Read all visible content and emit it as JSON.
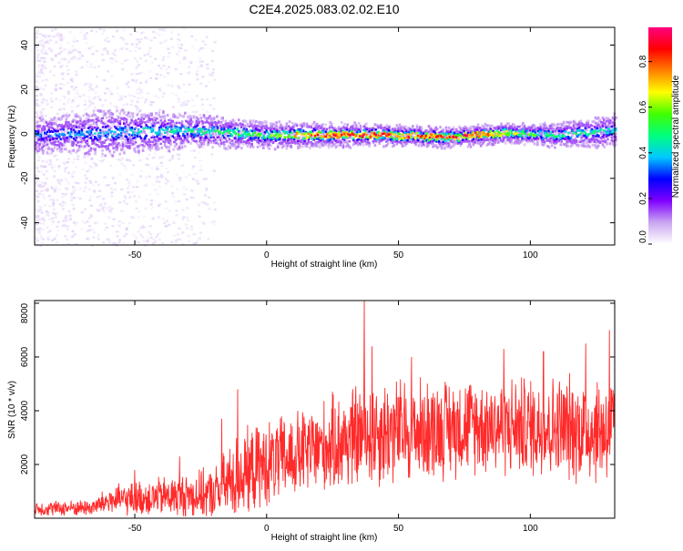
{
  "page_title": "C2E4.2025.083.02.02.E10",
  "chart_data": [
    {
      "type": "heatmap",
      "panel": "spectrogram",
      "xlabel": "Height of straight line (km)",
      "ylabel": "Frequency (Hz)",
      "xlim": [
        -88,
        132
      ],
      "ylim": [
        -50,
        48
      ],
      "xticks": [
        -50,
        0,
        50,
        100
      ],
      "yticks": [
        -40,
        -20,
        0,
        20,
        40
      ],
      "colorbar": {
        "label": "Normalized spectral amplitude",
        "range": [
          0,
          0.95
        ],
        "ticks": [
          0.0,
          0.2,
          0.4,
          0.6,
          0.8
        ],
        "tick_labels": [
          "0.0",
          "0.2",
          "0.4",
          "0.6",
          "0.8"
        ],
        "colors": [
          "#ffffff",
          "#c9a6f0",
          "#8000ff",
          "#0000ff",
          "#00c8ff",
          "#00ff80",
          "#40ff00",
          "#ffff00",
          "#ff8000",
          "#ff0000",
          "#ff0080"
        ]
      },
      "ridge": {
        "center_hz": [
          {
            "x": -88,
            "y": 0
          },
          {
            "x": -60,
            "y": 1
          },
          {
            "x": -30,
            "y": 2
          },
          {
            "x": 0,
            "y": 0
          },
          {
            "x": 40,
            "y": 0
          },
          {
            "x": 70,
            "y": -1
          },
          {
            "x": 90,
            "y": 1
          },
          {
            "x": 110,
            "y": 0
          },
          {
            "x": 132,
            "y": 2
          }
        ],
        "halfwidth_hz": [
          {
            "x": -88,
            "y": 5
          },
          {
            "x": -60,
            "y": 7
          },
          {
            "x": -30,
            "y": 5
          },
          {
            "x": 0,
            "y": 4
          },
          {
            "x": 60,
            "y": 3
          },
          {
            "x": 100,
            "y": 3
          },
          {
            "x": 132,
            "y": 5
          }
        ],
        "peak_amplitude": [
          {
            "x": -88,
            "y": 0.35
          },
          {
            "x": -60,
            "y": 0.42
          },
          {
            "x": -30,
            "y": 0.5
          },
          {
            "x": 0,
            "y": 0.6
          },
          {
            "x": 20,
            "y": 0.85
          },
          {
            "x": 40,
            "y": 0.9
          },
          {
            "x": 60,
            "y": 0.9
          },
          {
            "x": 80,
            "y": 0.88
          },
          {
            "x": 100,
            "y": 0.6
          },
          {
            "x": 132,
            "y": 0.45
          }
        ]
      },
      "scatter_region": {
        "x_range": [
          -88,
          -20
        ],
        "note": "sparse low-amplitude returns across all frequencies"
      }
    },
    {
      "type": "line",
      "panel": "snr",
      "xlabel": "Height of straight line (km)",
      "ylabel": "SNR (10 * v/v)",
      "xlim": [
        -88,
        132
      ],
      "ylim": [
        0,
        8100
      ],
      "xticks": [
        -50,
        0,
        50,
        100
      ],
      "yticks": [
        2000,
        4000,
        6000,
        8000
      ],
      "color": "#ff2a2a",
      "envelope": [
        {
          "x": -88,
          "mean": 350,
          "spread": 250
        },
        {
          "x": -66,
          "mean": 400,
          "spread": 300
        },
        {
          "x": -60,
          "mean": 650,
          "spread": 500
        },
        {
          "x": -40,
          "mean": 800,
          "spread": 700
        },
        {
          "x": -20,
          "mean": 900,
          "spread": 900
        },
        {
          "x": -12,
          "mean": 1500,
          "spread": 1500
        },
        {
          "x": 0,
          "mean": 2000,
          "spread": 1500
        },
        {
          "x": 20,
          "mean": 2600,
          "spread": 1600
        },
        {
          "x": 40,
          "mean": 3200,
          "spread": 2000
        },
        {
          "x": 60,
          "mean": 3300,
          "spread": 1800
        },
        {
          "x": 80,
          "mean": 3500,
          "spread": 1700
        },
        {
          "x": 100,
          "mean": 3400,
          "spread": 1800
        },
        {
          "x": 132,
          "mean": 3300,
          "spread": 2000
        }
      ],
      "peaks": [
        {
          "x": -50,
          "y": 1800
        },
        {
          "x": -33,
          "y": 2300
        },
        {
          "x": -17,
          "y": 3700
        },
        {
          "x": -11,
          "y": 4800
        },
        {
          "x": 37,
          "y": 8100
        },
        {
          "x": 40,
          "y": 6400
        },
        {
          "x": 55,
          "y": 6000
        },
        {
          "x": 90,
          "y": 6300
        },
        {
          "x": 105,
          "y": 6200
        },
        {
          "x": 121,
          "y": 6500
        },
        {
          "x": 130,
          "y": 7000
        }
      ]
    }
  ]
}
